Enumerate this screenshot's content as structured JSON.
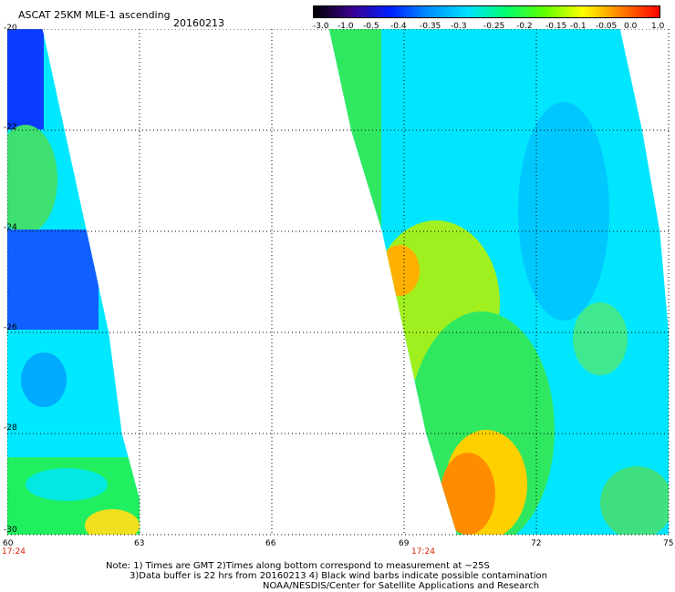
{
  "header": {
    "title": "ASCAT 25KM MLE-1 ascending",
    "date": "20160213"
  },
  "colorbar": {
    "labels": [
      "-3.0",
      "-1.0",
      "-0.5",
      "-0.4",
      "-0.35",
      "-0.3",
      "-0.25",
      "-0.2",
      "-0.15",
      "-0.1",
      "-0.05",
      "0.0",
      "1.0"
    ],
    "colors": [
      "#000000",
      "#3b0090",
      "#0020ff",
      "#0090ff",
      "#00e0ff",
      "#00ff70",
      "#60ff00",
      "#ffff00",
      "#ff8000",
      "#ff0000"
    ]
  },
  "map": {
    "lon_ticks": [
      "60",
      "63",
      "66",
      "69",
      "72",
      "75"
    ],
    "lat_ticks": [
      "-20",
      "-22",
      "-24",
      "-26",
      "-28",
      "-30"
    ],
    "lon_range": [
      60,
      75
    ],
    "lat_range": [
      -20,
      -30
    ],
    "swaths": [
      {
        "name": "western swath",
        "time_label": "17:24",
        "lon_at_lat": [
          {
            "lat": -20,
            "west": 60.0,
            "east": 60.8
          },
          {
            "lat": -22,
            "west": 60.0,
            "east": 61.3
          },
          {
            "lat": -24,
            "west": 60.0,
            "east": 61.8
          },
          {
            "lat": -26,
            "west": 60.0,
            "east": 62.3
          },
          {
            "lat": -28,
            "west": 60.0,
            "east": 62.6
          },
          {
            "lat": -29.3,
            "west": 60.0,
            "east": 63.0
          },
          {
            "lat": -30,
            "west": 60.0,
            "east": 63.0
          }
        ]
      },
      {
        "name": "eastern swath",
        "time_label": "17:24",
        "lon_at_lat": [
          {
            "lat": -20,
            "west": 67.3,
            "east": 73.9
          },
          {
            "lat": -22,
            "west": 67.8,
            "east": 74.4
          },
          {
            "lat": -24,
            "west": 68.5,
            "east": 74.8
          },
          {
            "lat": -26,
            "west": 69.0,
            "east": 75.0
          },
          {
            "lat": -28,
            "west": 69.5,
            "east": 75.0
          },
          {
            "lat": -30,
            "west": 70.2,
            "east": 75.0
          }
        ]
      }
    ]
  },
  "notes": {
    "line1": "Note: 1) Times are GMT 2)Times along bottom correspond to measurement at ~25S",
    "line2": "3)Data buffer is 22 hrs from 20160213 4) Black wind barbs indicate possible contamination",
    "line3": "NOAA/NESDIS/Center for Satellite Applications and Research"
  }
}
